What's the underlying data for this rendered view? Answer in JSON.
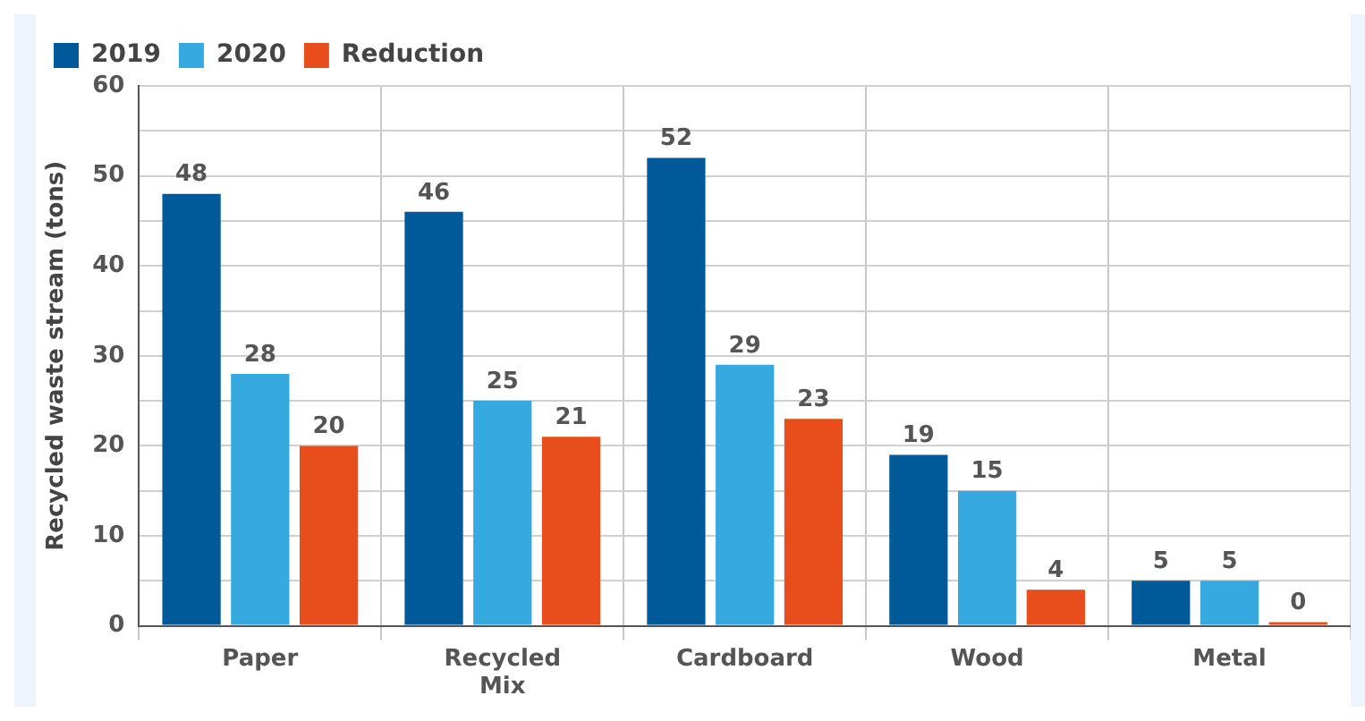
{
  "chart_data": {
    "type": "bar",
    "ylabel": "Recycled waste stream (tons)",
    "categories": [
      "Paper",
      "Recycled Mix",
      "Cardboard",
      "Wood",
      "Metal"
    ],
    "series": [
      {
        "name": "2019",
        "color": "#005a9a",
        "values": [
          48,
          46,
          52,
          19,
          5
        ]
      },
      {
        "name": "2020",
        "color": "#36a9e0",
        "values": [
          28,
          25,
          29,
          15,
          5
        ]
      },
      {
        "name": "Reduction",
        "color": "#e84e1c",
        "values": [
          20,
          21,
          23,
          4,
          0
        ]
      }
    ],
    "ylim": [
      0,
      60
    ],
    "yticks": [
      0,
      {
        "value": 5,
        "label": null
      },
      10,
      {
        "value": 15,
        "label": null
      },
      20,
      {
        "value": 25,
        "label": null
      },
      30,
      {
        "value": 35,
        "label": null
      },
      40,
      {
        "value": 45,
        "label": null
      },
      50,
      {
        "value": 55,
        "label": null
      },
      60
    ],
    "grid": true,
    "legend": "top left",
    "data_labels": true
  }
}
